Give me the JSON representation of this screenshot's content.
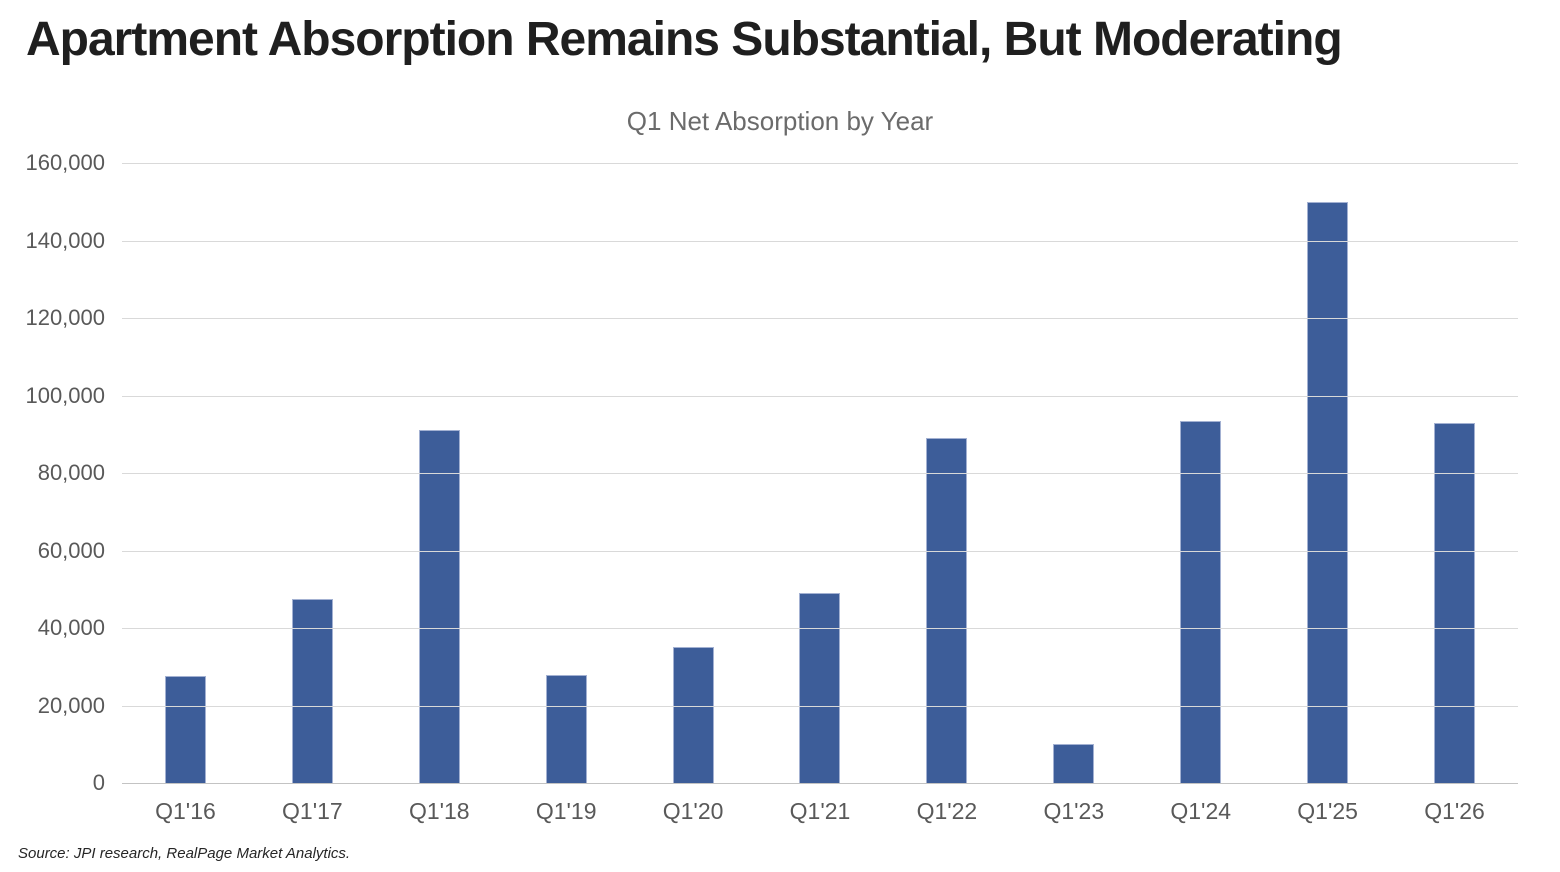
{
  "header": {
    "title": "Apartment Absorption Remains Substantial, But Moderating",
    "subtitle": "Q1 Net Absorption by Year"
  },
  "footer": {
    "source": "Source: JPI research, RealPage Market Analytics."
  },
  "colors": {
    "bar_fill": "#3d5d99",
    "bar_edge": "#a3b1d2",
    "gridline": "#d9d9d9",
    "axis_text": "#595959",
    "title_text": "#1f1f1f"
  },
  "chart_data": {
    "type": "bar",
    "title": "Q1 Net Absorption by Year",
    "categories": [
      "Q1'16",
      "Q1'17",
      "Q1'18",
      "Q1'19",
      "Q1'20",
      "Q1'21",
      "Q1'22",
      "Q1'23",
      "Q1'24",
      "Q1'25",
      "Q1'26"
    ],
    "values": [
      27500,
      47500,
      91000,
      28000,
      35000,
      49000,
      89000,
      10000,
      93500,
      150000,
      93000
    ],
    "xlabel": "",
    "ylabel": "",
    "ylim": [
      0,
      160000
    ],
    "ytick_step": 20000,
    "ytick_labels": [
      "0",
      "20,000",
      "40,000",
      "60,000",
      "80,000",
      "100,000",
      "120,000",
      "140,000",
      "160,000"
    ],
    "grid": "horizontal",
    "legend": "none"
  }
}
